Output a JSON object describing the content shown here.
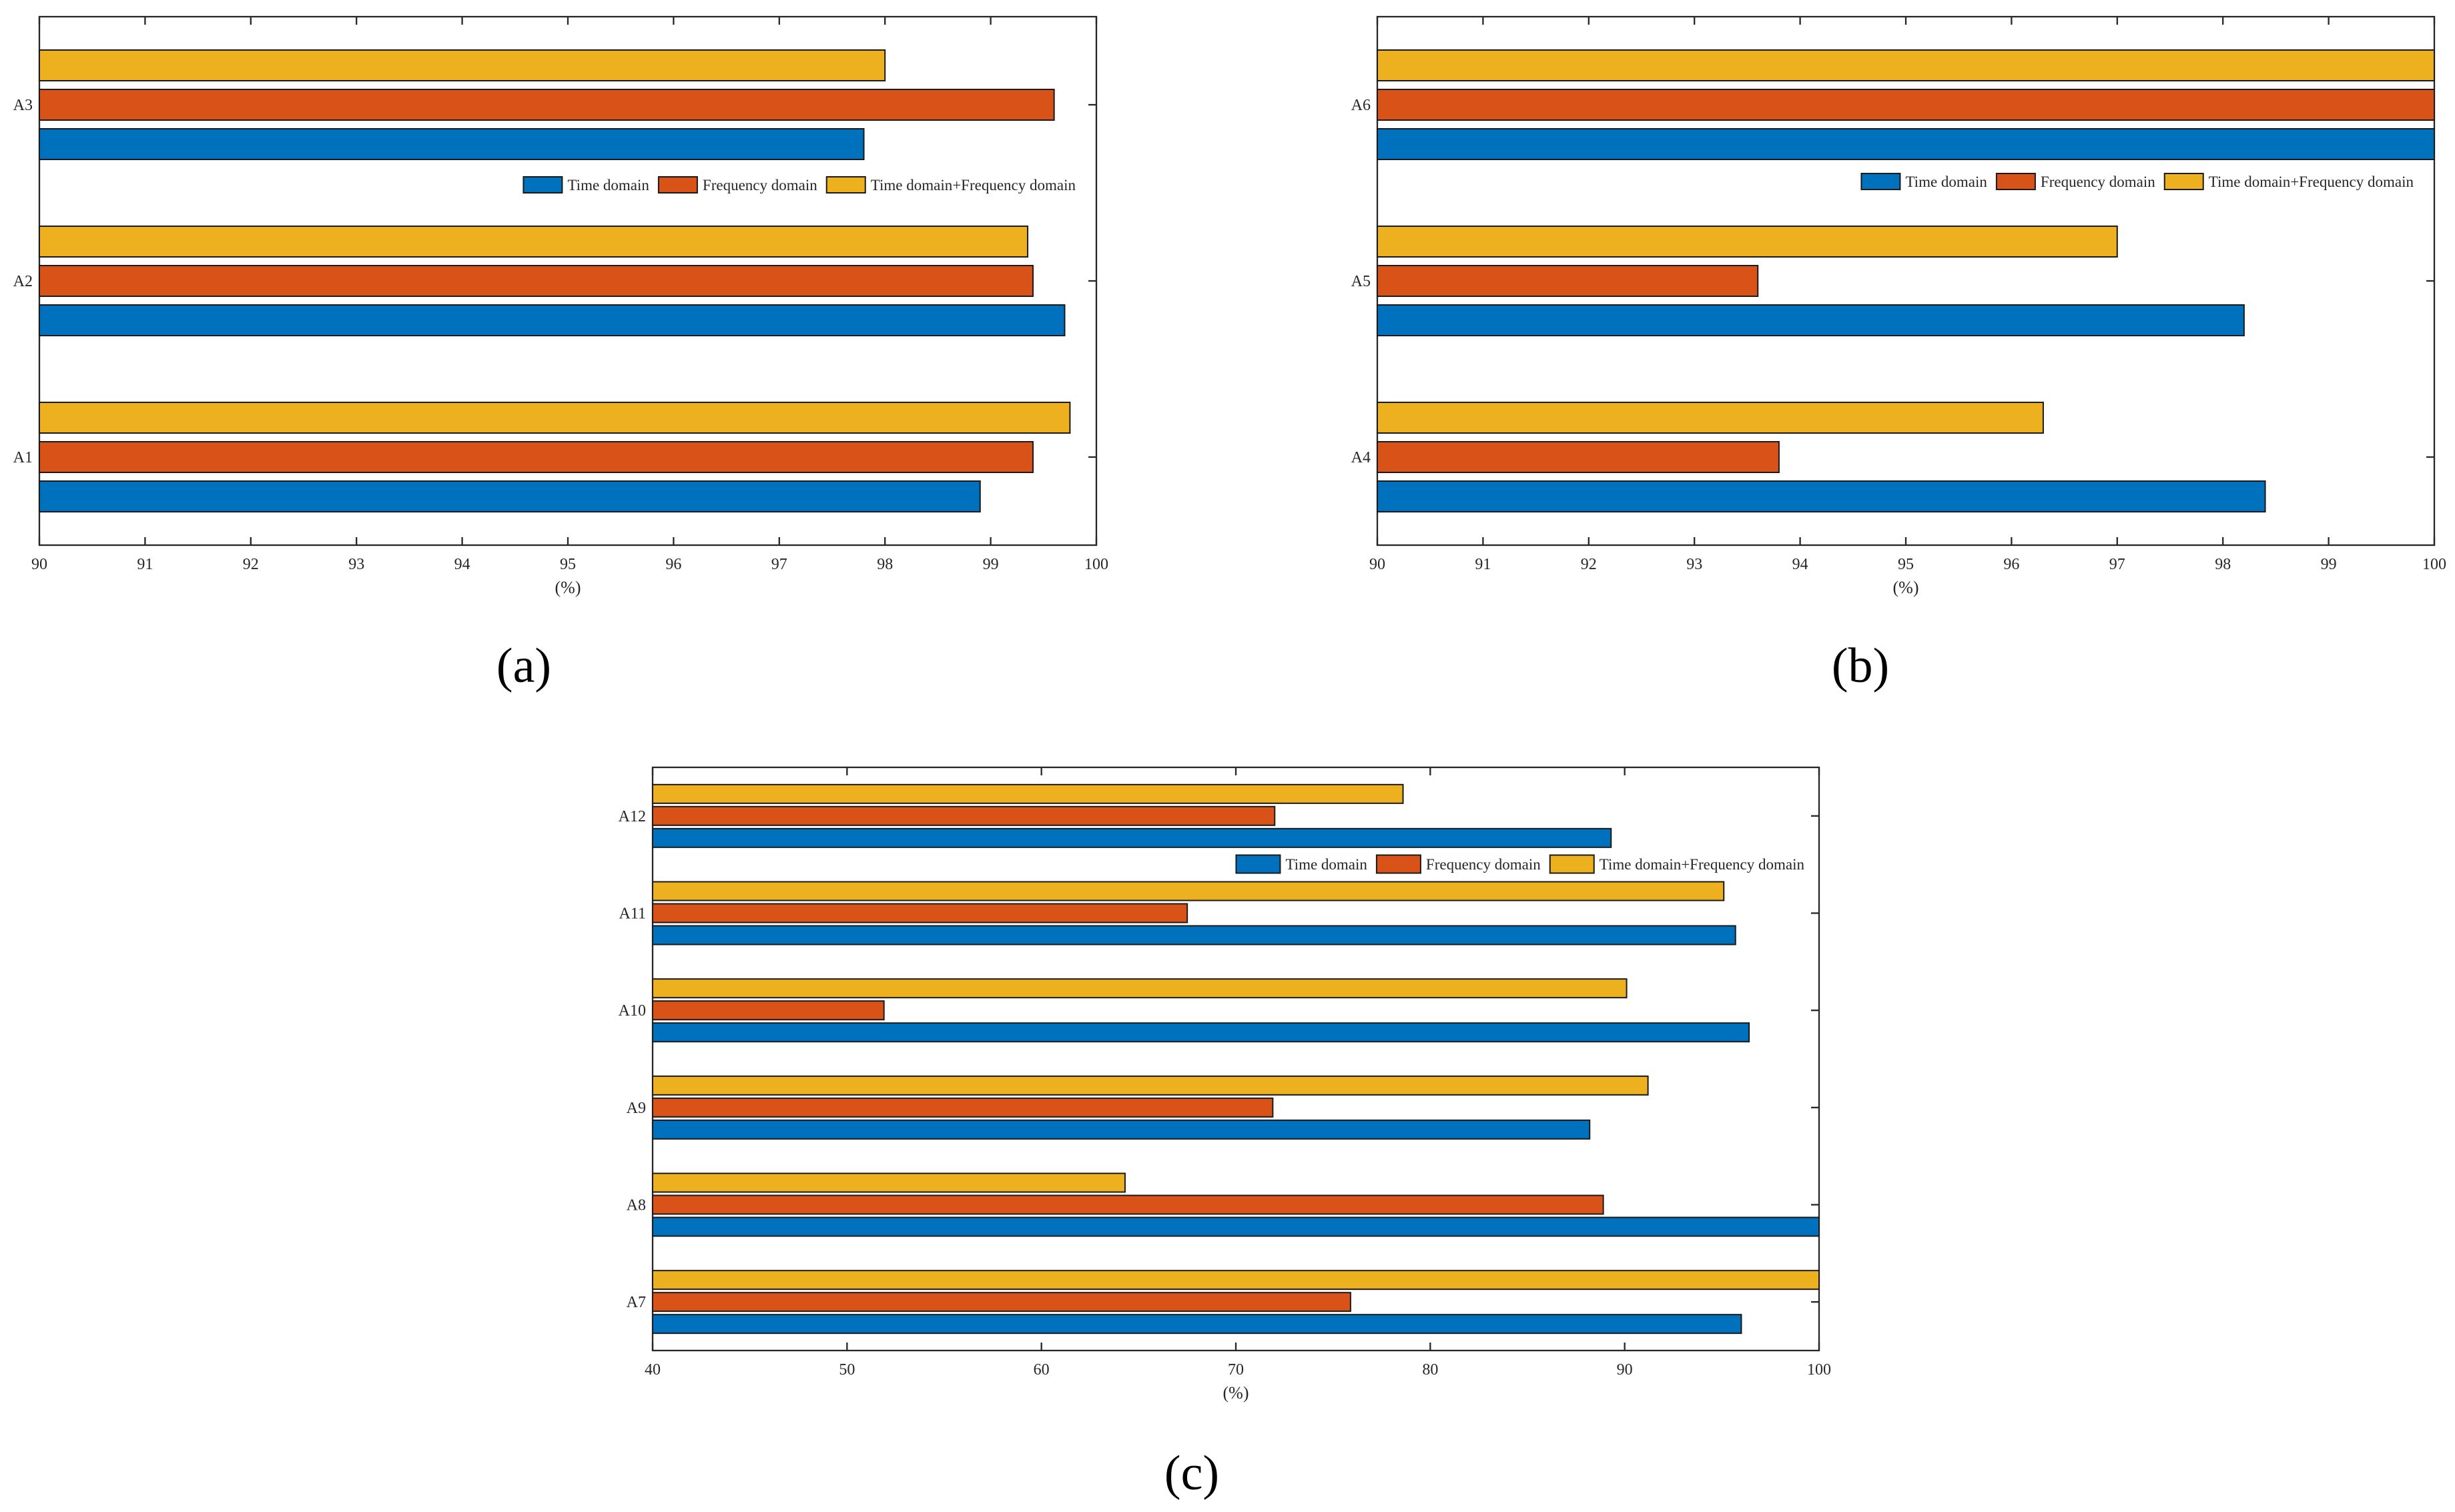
{
  "colors": {
    "time_domain": "#0072BD",
    "frequency_domain": "#D95319",
    "combined": "#EDB120"
  },
  "chart_data": [
    {
      "panel": "(a)",
      "type": "bar",
      "orientation": "horizontal",
      "categories": [
        "A1",
        "A2",
        "A3"
      ],
      "series": [
        {
          "name": "Time domain",
          "values": [
            98.9,
            99.7,
            97.8
          ]
        },
        {
          "name": "Frequency domain",
          "values": [
            99.4,
            99.4,
            99.6
          ]
        },
        {
          "name": "Time domain+Frequency domain",
          "values": [
            99.75,
            99.35,
            98.0
          ]
        }
      ],
      "xlabel": "(%)",
      "xlim": [
        90,
        100
      ],
      "xticks": [
        "90",
        "91",
        "92",
        "93",
        "94",
        "95",
        "96",
        "97",
        "98",
        "99",
        "100"
      ],
      "legend": "top-right"
    },
    {
      "panel": "(b)",
      "type": "bar",
      "orientation": "horizontal",
      "categories": [
        "A4",
        "A5",
        "A6"
      ],
      "series": [
        {
          "name": "Time domain",
          "values": [
            98.4,
            98.2,
            100
          ]
        },
        {
          "name": "Frequency domain",
          "values": [
            93.8,
            93.6,
            100
          ]
        },
        {
          "name": "Time domain+Frequency domain",
          "values": [
            96.3,
            97.0,
            100
          ]
        }
      ],
      "xlabel": "(%)",
      "xlim": [
        90,
        100
      ],
      "xticks": [
        "90",
        "91",
        "92",
        "93",
        "94",
        "95",
        "96",
        "97",
        "98",
        "99",
        "100"
      ],
      "legend": "top-right"
    },
    {
      "panel": "(c)",
      "type": "bar",
      "orientation": "horizontal",
      "categories": [
        "A7",
        "A8",
        "A9",
        "A10",
        "A11",
        "A12"
      ],
      "series": [
        {
          "name": "Time domain",
          "values": [
            96.0,
            100,
            88.2,
            96.4,
            95.7,
            89.3
          ]
        },
        {
          "name": "Frequency domain",
          "values": [
            75.9,
            88.9,
            71.9,
            51.9,
            67.5,
            72.0
          ]
        },
        {
          "name": "Time domain+Frequency domain",
          "values": [
            100,
            64.3,
            91.2,
            90.1,
            95.1,
            78.6
          ]
        }
      ],
      "xlabel": "(%)",
      "xlim": [
        40,
        100
      ],
      "xticks": [
        "40",
        "50",
        "60",
        "70",
        "80",
        "90",
        "100"
      ],
      "legend": "top-right"
    }
  ]
}
